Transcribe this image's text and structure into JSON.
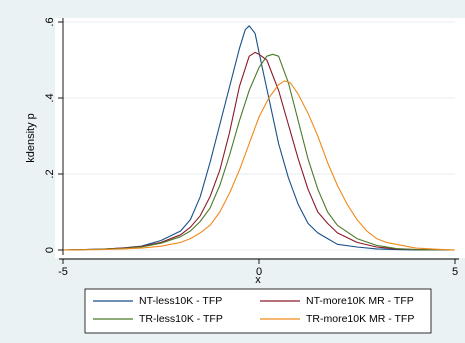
{
  "chart_data": {
    "type": "line",
    "title": "",
    "xlabel": "x",
    "ylabel": "kdensity p",
    "xlim": [
      -5,
      5
    ],
    "ylim": [
      0,
      0.6
    ],
    "x_ticks": [
      -5,
      0,
      5
    ],
    "x_tick_labels": [
      "-5",
      "0",
      "5"
    ],
    "y_ticks": [
      0,
      0.2,
      0.4,
      0.6
    ],
    "y_tick_labels": [
      "0",
      ".2",
      ".4",
      ".6"
    ],
    "grid": "horizontal",
    "legend_position": "bottom",
    "series": [
      {
        "name": "NT-less10K - TFP",
        "color": "#1a4f8b",
        "points": [
          [
            -5,
            0.0
          ],
          [
            -4,
            0.002
          ],
          [
            -3.5,
            0.005
          ],
          [
            -3,
            0.01
          ],
          [
            -2.5,
            0.025
          ],
          [
            -2,
            0.05
          ],
          [
            -1.75,
            0.08
          ],
          [
            -1.5,
            0.14
          ],
          [
            -1.25,
            0.23
          ],
          [
            -1,
            0.33
          ],
          [
            -0.75,
            0.43
          ],
          [
            -0.5,
            0.53
          ],
          [
            -0.35,
            0.58
          ],
          [
            -0.25,
            0.59
          ],
          [
            -0.1,
            0.57
          ],
          [
            0,
            0.52
          ],
          [
            0.25,
            0.4
          ],
          [
            0.5,
            0.28
          ],
          [
            0.75,
            0.19
          ],
          [
            1,
            0.12
          ],
          [
            1.25,
            0.07
          ],
          [
            1.5,
            0.045
          ],
          [
            1.75,
            0.03
          ],
          [
            2,
            0.015
          ],
          [
            2.5,
            0.008
          ],
          [
            3,
            0.003
          ],
          [
            3.5,
            0.001
          ],
          [
            4,
            0.0
          ],
          [
            5,
            0.0
          ]
        ]
      },
      {
        "name": "NT-more10K MR - TFP",
        "color": "#8b1a2a",
        "points": [
          [
            -5,
            0.0
          ],
          [
            -4,
            0.002
          ],
          [
            -3.5,
            0.005
          ],
          [
            -3,
            0.009
          ],
          [
            -2.5,
            0.02
          ],
          [
            -2,
            0.04
          ],
          [
            -1.75,
            0.06
          ],
          [
            -1.5,
            0.09
          ],
          [
            -1.25,
            0.14
          ],
          [
            -1,
            0.21
          ],
          [
            -0.75,
            0.31
          ],
          [
            -0.5,
            0.43
          ],
          [
            -0.25,
            0.51
          ],
          [
            -0.1,
            0.52
          ],
          [
            0,
            0.515
          ],
          [
            0.2,
            0.5
          ],
          [
            0.5,
            0.42
          ],
          [
            0.75,
            0.33
          ],
          [
            1,
            0.24
          ],
          [
            1.25,
            0.16
          ],
          [
            1.5,
            0.1
          ],
          [
            1.75,
            0.07
          ],
          [
            2,
            0.045
          ],
          [
            2.5,
            0.02
          ],
          [
            3,
            0.008
          ],
          [
            3.5,
            0.003
          ],
          [
            4,
            0.001
          ],
          [
            5,
            0.0
          ]
        ]
      },
      {
        "name": "TR-less10K - TFP",
        "color": "#4b7a2a",
        "points": [
          [
            -5,
            0.0
          ],
          [
            -4,
            0.002
          ],
          [
            -3.5,
            0.004
          ],
          [
            -3,
            0.008
          ],
          [
            -2.5,
            0.018
          ],
          [
            -2,
            0.035
          ],
          [
            -1.75,
            0.05
          ],
          [
            -1.5,
            0.075
          ],
          [
            -1.25,
            0.11
          ],
          [
            -1,
            0.17
          ],
          [
            -0.75,
            0.25
          ],
          [
            -0.5,
            0.34
          ],
          [
            -0.25,
            0.42
          ],
          [
            0,
            0.48
          ],
          [
            0.2,
            0.51
          ],
          [
            0.35,
            0.515
          ],
          [
            0.5,
            0.51
          ],
          [
            0.75,
            0.44
          ],
          [
            1,
            0.34
          ],
          [
            1.25,
            0.24
          ],
          [
            1.5,
            0.16
          ],
          [
            1.75,
            0.1
          ],
          [
            2,
            0.065
          ],
          [
            2.5,
            0.03
          ],
          [
            3,
            0.012
          ],
          [
            3.5,
            0.004
          ],
          [
            4,
            0.001
          ],
          [
            5,
            0.0
          ]
        ]
      },
      {
        "name": "TR-more10K MR - TFP",
        "color": "#f08a1c",
        "points": [
          [
            -5,
            0.0
          ],
          [
            -4,
            0.001
          ],
          [
            -3.5,
            0.003
          ],
          [
            -3,
            0.005
          ],
          [
            -2.5,
            0.01
          ],
          [
            -2,
            0.02
          ],
          [
            -1.75,
            0.03
          ],
          [
            -1.5,
            0.045
          ],
          [
            -1.25,
            0.065
          ],
          [
            -1,
            0.1
          ],
          [
            -0.75,
            0.15
          ],
          [
            -0.5,
            0.21
          ],
          [
            -0.25,
            0.28
          ],
          [
            0,
            0.35
          ],
          [
            0.25,
            0.4
          ],
          [
            0.5,
            0.435
          ],
          [
            0.65,
            0.445
          ],
          [
            0.8,
            0.44
          ],
          [
            1,
            0.41
          ],
          [
            1.25,
            0.36
          ],
          [
            1.5,
            0.3
          ],
          [
            1.75,
            0.23
          ],
          [
            2,
            0.17
          ],
          [
            2.25,
            0.12
          ],
          [
            2.5,
            0.08
          ],
          [
            2.75,
            0.05
          ],
          [
            3,
            0.03
          ],
          [
            3.25,
            0.02
          ],
          [
            3.5,
            0.015
          ],
          [
            4,
            0.005
          ],
          [
            4.5,
            0.002
          ],
          [
            5,
            0.0
          ]
        ]
      }
    ]
  }
}
